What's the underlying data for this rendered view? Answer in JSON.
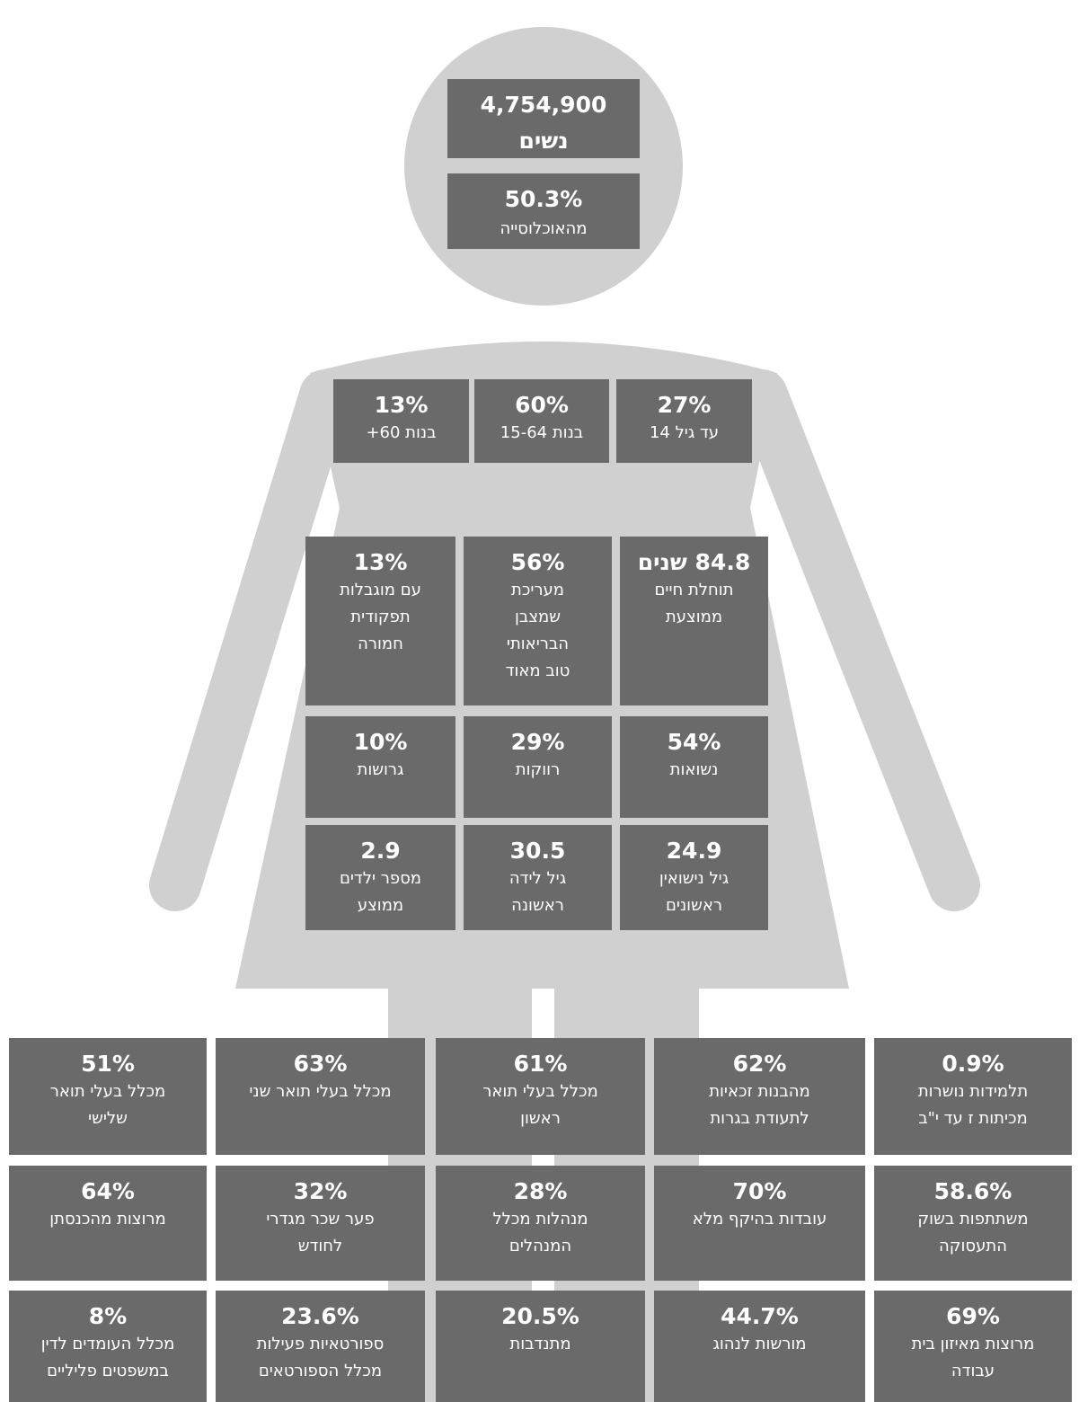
{
  "head": [
    {
      "value": "4,754,900",
      "lines": [
        "נשים"
      ]
    },
    {
      "value": "50.3%",
      "lines": [
        "מהאוכלוסייה"
      ]
    }
  ],
  "age_groups": [
    {
      "value": "13%",
      "lines": [
        "בנות 60+"
      ]
    },
    {
      "value": "60%",
      "lines": [
        "בנות 15-64"
      ]
    },
    {
      "value": "27%",
      "lines": [
        "עד גיל 14"
      ]
    }
  ],
  "stats": [
    {
      "value": "13%",
      "lines": [
        "עם מוגבלות",
        "תפקודית",
        "חמורה"
      ]
    },
    {
      "value": "56%",
      "lines": [
        "מעריכת",
        "שמצבן",
        "הבריאותי",
        "טוב מאוד"
      ]
    },
    {
      "value": "84.8 שנים",
      "lines": [
        "תוחלת חיים",
        "ממוצעת"
      ]
    },
    {
      "value": "10%",
      "lines": [
        "גרושות"
      ]
    },
    {
      "value": "29%",
      "lines": [
        "רווקות"
      ]
    },
    {
      "value": "54%",
      "lines": [
        "נשואות"
      ]
    },
    {
      "value": "2.9",
      "lines": [
        "מספר ילדים",
        "ממוצע"
      ]
    },
    {
      "value": "30.5",
      "lines": [
        "גיל לידה",
        "ראשונה"
      ]
    },
    {
      "value": "24.9",
      "lines": [
        "גיל נישואין",
        "ראשונים"
      ]
    }
  ],
  "bottom": [
    {
      "value": "51%",
      "lines": [
        "מכלל בעלי תואר",
        "שלישי"
      ]
    },
    {
      "value": "63%",
      "lines": [
        "מכלל בעלי תואר שני"
      ]
    },
    {
      "value": "61%",
      "lines": [
        "מכלל בעלי תואר",
        "ראשון"
      ]
    },
    {
      "value": "62%",
      "lines": [
        "מהבנות זכאיות",
        "לתעודת בגרות"
      ]
    },
    {
      "value": "0.9%",
      "lines": [
        "תלמידות נושרות",
        "מכיתות ז עד י\"ב"
      ]
    },
    {
      "value": "64%",
      "lines": [
        "מרוצות מהכנסתן"
      ]
    },
    {
      "value": "32%",
      "lines": [
        "פער שכר מגדרי",
        "לחודש"
      ]
    },
    {
      "value": "28%",
      "lines": [
        "מנהלות מכלל",
        "המנהלים"
      ]
    },
    {
      "value": "70%",
      "lines": [
        "עובדות בהיקף מלא"
      ]
    },
    {
      "value": "58.6%",
      "lines": [
        "משתתפות בשוק",
        "התעסוקה"
      ]
    },
    {
      "value": "8%",
      "lines": [
        "מכלל העומדים  לדין",
        "במשפטים פליליים"
      ]
    },
    {
      "value": "23.6%",
      "lines": [
        "ספורטאיות פעילות",
        "מכלל הספורטאים"
      ]
    },
    {
      "value": "20.5%",
      "lines": [
        "מתנדבות"
      ]
    },
    {
      "value": "44.7%",
      "lines": [
        "מורשות לנהוג"
      ]
    },
    {
      "value": "69%",
      "lines": [
        "מרוצות מאיזון בית",
        "עבודה"
      ]
    }
  ]
}
